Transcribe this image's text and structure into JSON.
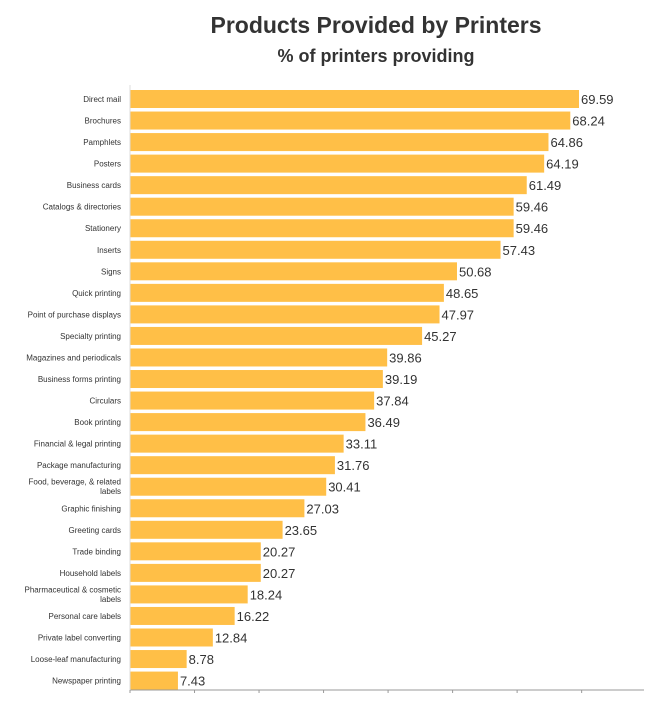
{
  "chart_data": {
    "type": "bar",
    "orientation": "horizontal",
    "title": "Products Provided by Printers",
    "subtitle": "% of printers providing",
    "xlabel": "",
    "ylabel": "",
    "xlim": [
      0,
      80
    ],
    "grid": false,
    "bar_color": "#FFBF47",
    "text_color": "#333333",
    "axis_color": "#999999",
    "categories": [
      "Direct mail",
      "Brochures",
      "Pamphlets",
      "Posters",
      "Business cards",
      "Catalogs & directories",
      "Stationery",
      "Inserts",
      "Signs",
      "Quick printing",
      "Point of purchase displays",
      "Specialty printing",
      "Magazines and periodicals",
      "Business forms printing",
      "Circulars",
      "Book printing",
      "Financial & legal printing",
      "Package manufacturing",
      "Food, beverage, & related labels",
      "Graphic finishing",
      "Greeting cards",
      "Trade binding",
      "Household labels",
      "Pharmaceutical & cosmetic labels",
      "Personal care labels",
      "Private label converting",
      "Loose-leaf manufacturing",
      "Newspaper printing"
    ],
    "category_lines": [
      [
        "Direct mail"
      ],
      [
        "Brochures"
      ],
      [
        "Pamphlets"
      ],
      [
        "Posters"
      ],
      [
        "Business cards"
      ],
      [
        "Catalogs & directories"
      ],
      [
        "Stationery"
      ],
      [
        "Inserts"
      ],
      [
        "Signs"
      ],
      [
        "Quick printing"
      ],
      [
        "Point of purchase displays"
      ],
      [
        "Specialty printing"
      ],
      [
        "Magazines and periodicals"
      ],
      [
        "Business forms printing"
      ],
      [
        "Circulars"
      ],
      [
        "Book printing"
      ],
      [
        "Financial & legal printing"
      ],
      [
        "Package manufacturing"
      ],
      [
        "Food, beverage, & related",
        "labels"
      ],
      [
        "Graphic finishing"
      ],
      [
        "Greeting cards"
      ],
      [
        "Trade binding"
      ],
      [
        "Household labels"
      ],
      [
        "Pharmaceutical & cosmetic",
        "labels"
      ],
      [
        "Personal care labels"
      ],
      [
        "Private label converting"
      ],
      [
        "Loose-leaf manufacturing"
      ],
      [
        "Newspaper printing"
      ]
    ],
    "values": [
      69.59,
      68.24,
      64.86,
      64.19,
      61.49,
      59.46,
      59.46,
      57.43,
      50.68,
      48.65,
      47.97,
      45.27,
      39.86,
      39.19,
      37.84,
      36.49,
      33.11,
      31.76,
      30.41,
      27.03,
      23.65,
      20.27,
      20.27,
      18.24,
      16.22,
      12.84,
      8.78,
      7.43
    ],
    "value_labels": [
      "69.59",
      "68.24",
      "64.86",
      "64.19",
      "61.49",
      "59.46",
      "59.46",
      "57.43",
      "50.68",
      "48.65",
      "47.97",
      "45.27",
      "39.86",
      "39.19",
      "37.84",
      "36.49",
      "33.11",
      "31.76",
      "30.41",
      "27.03",
      "23.65",
      "20.27",
      "20.27",
      "18.24",
      "16.22",
      "12.84",
      "8.78",
      "7.43"
    ]
  }
}
